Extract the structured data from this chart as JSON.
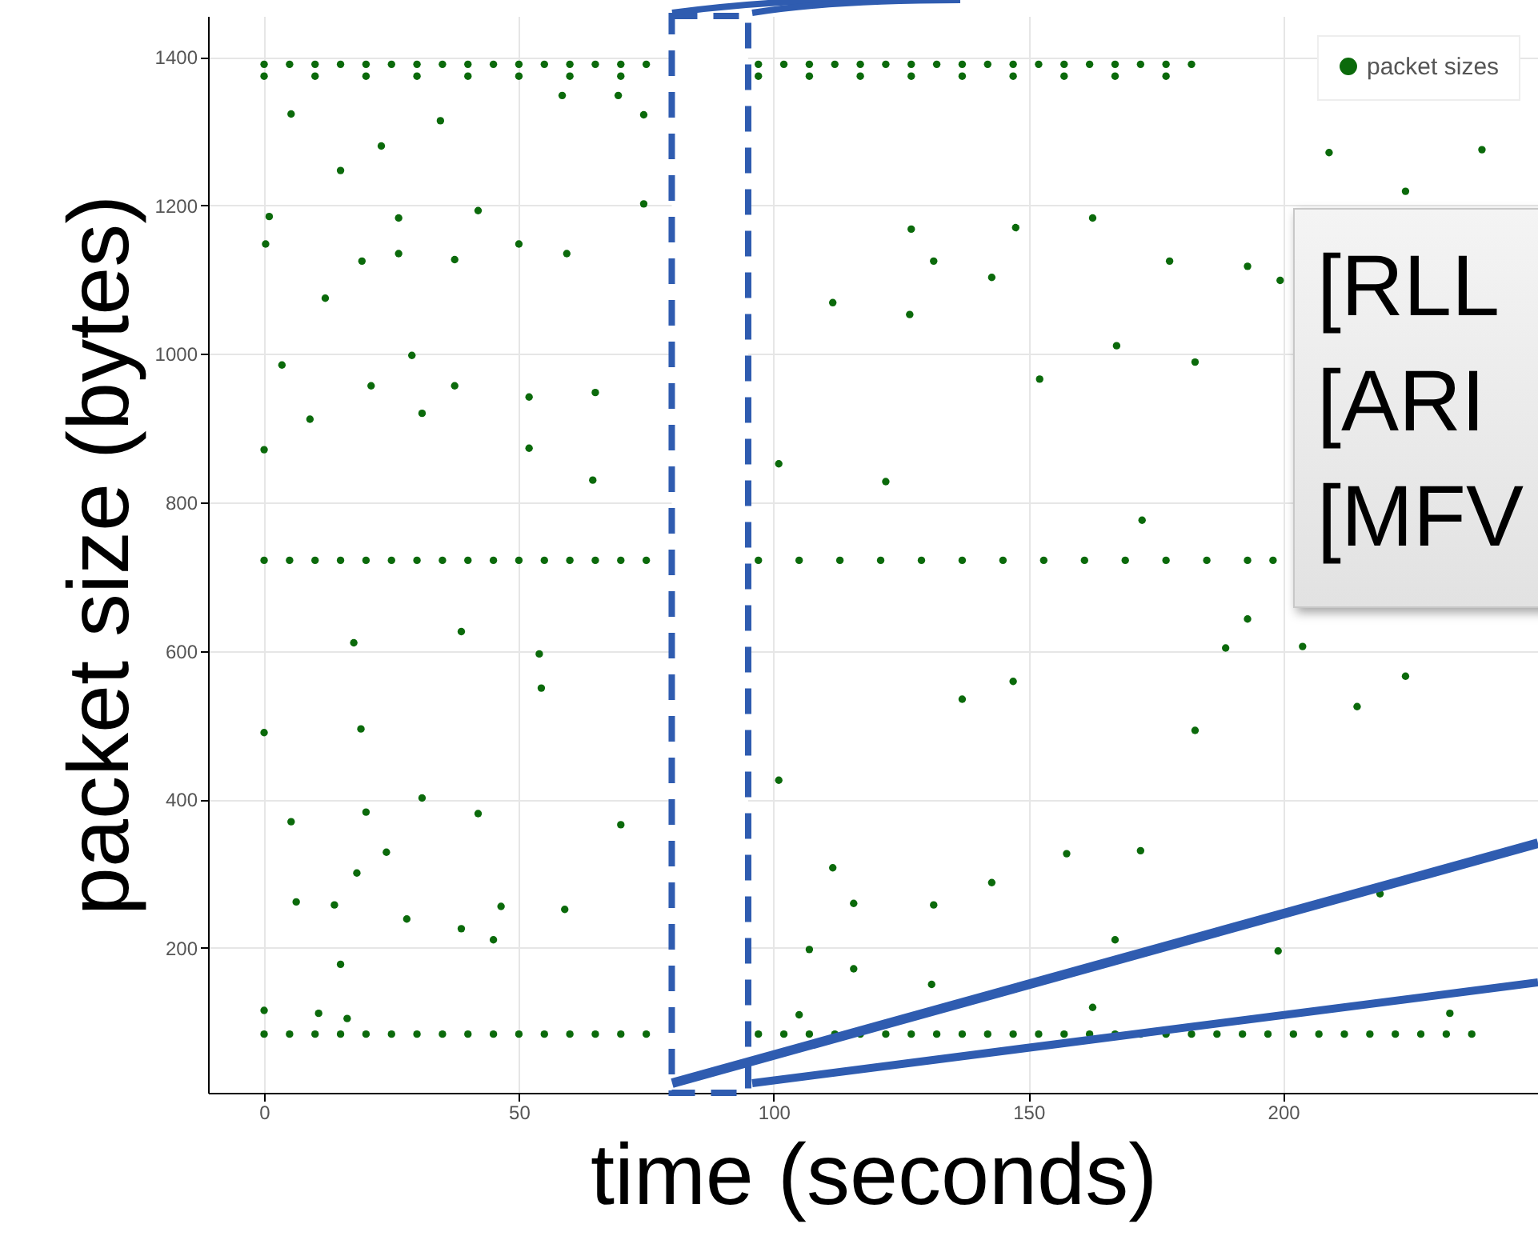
{
  "chart_data": {
    "type": "scatter",
    "xlabel": "time (seconds)",
    "ylabel": "packet size (bytes)",
    "xlim": [
      -11,
      250
    ],
    "ylim": [
      5,
      1455
    ],
    "xticks": [
      0,
      50,
      100,
      150,
      200
    ],
    "yticks": [
      200,
      400,
      600,
      800,
      1000,
      1200,
      1400
    ],
    "grid": true,
    "legend": "top right",
    "marker": "circle",
    "bands": [
      {
        "axis": "x",
        "from": 80,
        "to": 95,
        "color": "#ffffff"
      }
    ],
    "annotations": [
      "[RLL",
      "[ARI",
      "[MFV"
    ],
    "series": [
      {
        "name": "packet sizes",
        "color": "#0b6a0b",
        "x": [
          0,
          5,
          10,
          15,
          20,
          25,
          30,
          35,
          40,
          45,
          50,
          55,
          60,
          65,
          70,
          75,
          97,
          102,
          107,
          112,
          117,
          122,
          127,
          132,
          137,
          142,
          147,
          152,
          157,
          162,
          167,
          172,
          177,
          182,
          0,
          10,
          20,
          30,
          40,
          50,
          60,
          70,
          97,
          107,
          117,
          127,
          137,
          147,
          157,
          167,
          177,
          0,
          5,
          10,
          15,
          20,
          25,
          30,
          35,
          40,
          45,
          50,
          55,
          60,
          65,
          70,
          75,
          97,
          105,
          113,
          121,
          129,
          137,
          145,
          153,
          161,
          169,
          177,
          185,
          193,
          198,
          0,
          5,
          10,
          15,
          20,
          25,
          30,
          35,
          40,
          45,
          50,
          55,
          60,
          65,
          70,
          75,
          97,
          102,
          107,
          112,
          117,
          122,
          127,
          132,
          137,
          142,
          147,
          152,
          157,
          162,
          167,
          172,
          177,
          182,
          187,
          192,
          197,
          202,
          207,
          212,
          217,
          222,
          227,
          232,
          237,
          5.3,
          34.6,
          23,
          15,
          74.5,
          58.5,
          69.5,
          1,
          26.4,
          42,
          74.5,
          0.3,
          50,
          59.4,
          26.4,
          19.2,
          37.4,
          12,
          3.5,
          29,
          21,
          37.4,
          52,
          65,
          9,
          31,
          0,
          52,
          64.5,
          101,
          209,
          239,
          224,
          127,
          147.5,
          162.6,
          131.4,
          142.8,
          177.7,
          193,
          199.4,
          111.6,
          126.7,
          167.3,
          182.7,
          152.2,
          122,
          172.3,
          17.6,
          38.7,
          54,
          54.4,
          0,
          19,
          31,
          5.3,
          20,
          42,
          70,
          24,
          18.2,
          6.3,
          13.8,
          46.5,
          59,
          28,
          38.7,
          45,
          15,
          0,
          10.7,
          16.3,
          101,
          111.6,
          115.7,
          115.7,
          107,
          131.4,
          131,
          137,
          147,
          157.5,
          142.8,
          172,
          167,
          182.7,
          193,
          188.7,
          203.8,
          214.5,
          224,
          199,
          219,
          232.7,
          105,
          162.6
        ],
        "values": [
          1390,
          1390,
          1390,
          1390,
          1390,
          1390,
          1390,
          1390,
          1390,
          1390,
          1390,
          1390,
          1390,
          1390,
          1390,
          1390,
          1390,
          1390,
          1390,
          1390,
          1390,
          1390,
          1390,
          1390,
          1390,
          1390,
          1390,
          1390,
          1390,
          1390,
          1390,
          1390,
          1390,
          1390,
          1374,
          1374,
          1374,
          1374,
          1374,
          1374,
          1374,
          1374,
          1374,
          1374,
          1374,
          1374,
          1374,
          1374,
          1374,
          1374,
          1374,
          722,
          722,
          722,
          722,
          722,
          722,
          722,
          722,
          722,
          722,
          722,
          722,
          722,
          722,
          722,
          722,
          722,
          722,
          722,
          722,
          722,
          722,
          722,
          722,
          722,
          722,
          722,
          722,
          722,
          722,
          84,
          84,
          84,
          84,
          84,
          84,
          84,
          84,
          84,
          84,
          84,
          84,
          84,
          84,
          84,
          84,
          84,
          84,
          84,
          84,
          84,
          84,
          84,
          84,
          84,
          84,
          84,
          84,
          84,
          84,
          84,
          84,
          84,
          84,
          84,
          84,
          84,
          84,
          84,
          84,
          84,
          84,
          84,
          84,
          84,
          1323,
          1314,
          1280,
          1247,
          1322,
          1348,
          1348,
          1185,
          1183,
          1193,
          1202,
          1148,
          1148,
          1135,
          1135,
          1125,
          1127,
          1075,
          985,
          998,
          957,
          957,
          942,
          948,
          912,
          920,
          871,
          873,
          830,
          852,
          1271,
          1275,
          1219,
          1168,
          1170,
          1183,
          1125,
          1103,
          1125,
          1118,
          1099,
          1069,
          1053,
          1011,
          989,
          966,
          828,
          776,
          611,
          626,
          596,
          550,
          490,
          495,
          402,
          370,
          383,
          381,
          366,
          329,
          301,
          262,
          258,
          256,
          252,
          239,
          226,
          211,
          178,
          116,
          112,
          105,
          426,
          308,
          260,
          172,
          198,
          258,
          151,
          535,
          559,
          327,
          288,
          331,
          211,
          493,
          643,
          604,
          606,
          525,
          566,
          196,
          273,
          112,
          110,
          120
        ]
      }
    ]
  }
}
